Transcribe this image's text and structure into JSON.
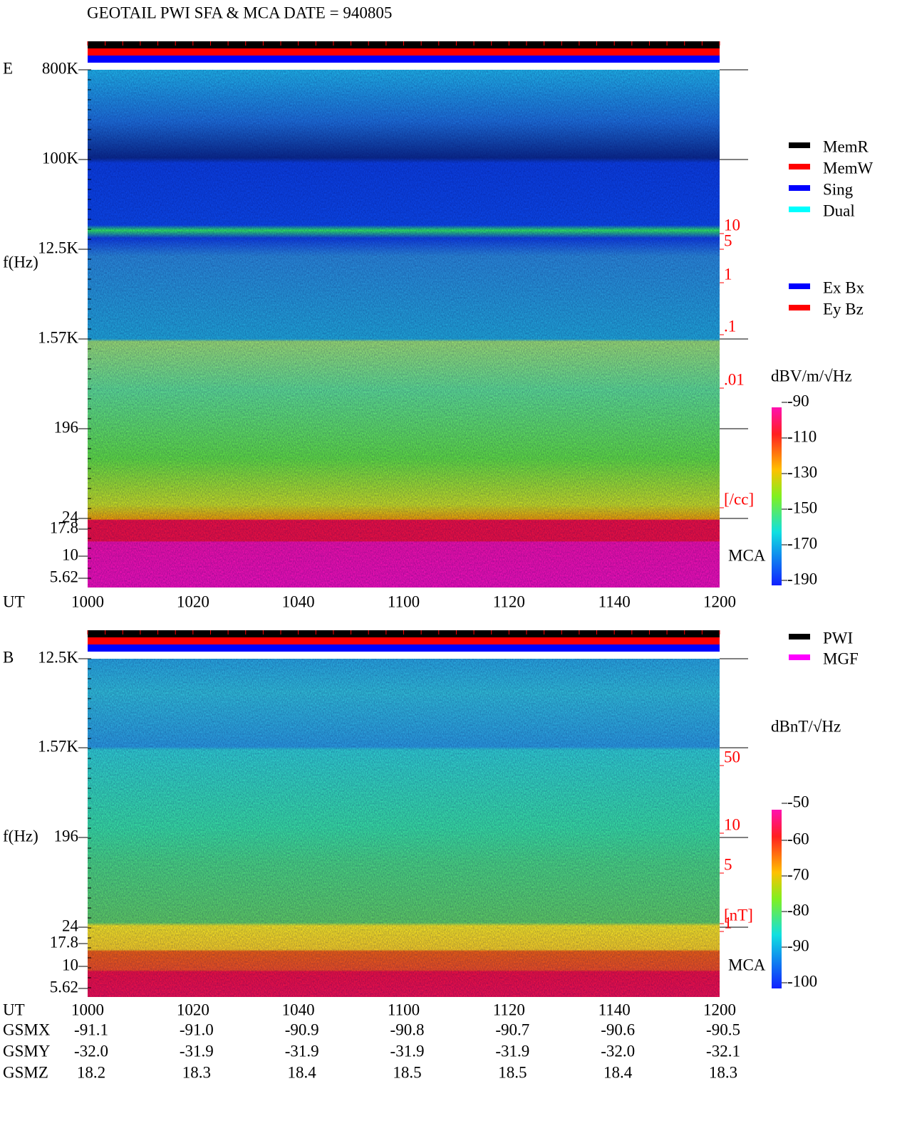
{
  "title": "GEOTAIL  PWI SFA & MCA   DATE = 940805",
  "legend_memory": [
    {
      "name": "MemR",
      "color": "#000000"
    },
    {
      "name": "MemW",
      "color": "#ff0000"
    },
    {
      "name": "Sing",
      "color": "#0000ff"
    },
    {
      "name": "Dual",
      "color": "#00ffff"
    }
  ],
  "panels": [
    {
      "label": "E",
      "y_axis_label": "f(Hz)",
      "x_axis_label": "UT",
      "freq_ticks": [
        "800K",
        "100K",
        "12.5K",
        "1.57K",
        "196",
        "24",
        "17.8",
        "10",
        "5.62"
      ],
      "time_ticks": [
        "1000",
        "1020",
        "1040",
        "1100",
        "1120",
        "1140",
        "1200"
      ],
      "right_labels": [
        "10",
        "5",
        "1",
        ".1",
        ".01",
        "[/cc]"
      ],
      "mca_label": "MCA",
      "legend": [
        {
          "name": "Ex Bx",
          "color": "#0000ff"
        },
        {
          "name": "Ey Bz",
          "color": "#ff0000"
        }
      ],
      "units": "dBV/m/√Hz",
      "colorbar_ticks": [
        -90,
        -110,
        -130,
        -150,
        -170,
        -190
      ]
    },
    {
      "label": "B",
      "y_axis_label": "f(Hz)",
      "x_axis_label": "UT",
      "freq_ticks": [
        "12.5K",
        "1.57K",
        "196",
        "24",
        "17.8",
        "10",
        "5.62"
      ],
      "time_ticks": [
        "1000",
        "1020",
        "1040",
        "1100",
        "1120",
        "1140",
        "1200"
      ],
      "right_labels": [
        "50",
        "10",
        "5",
        "1",
        "[nT]"
      ],
      "mca_label": "MCA",
      "legend": [
        {
          "name": "PWI",
          "color": "#000000"
        },
        {
          "name": "MGF",
          "color": "#ff00ff"
        }
      ],
      "units": "dBnT/√Hz",
      "colorbar_ticks": [
        -50,
        -60,
        -70,
        -80,
        -90,
        -100
      ]
    }
  ],
  "orbit": [
    {
      "label": "GSMX",
      "values": [
        "-91.1",
        "-91.0",
        "-90.9",
        "-90.8",
        "-90.7",
        "-90.6",
        "-90.5"
      ]
    },
    {
      "label": "GSMY",
      "values": [
        "-32.0",
        "-31.9",
        "-31.9",
        "-31.9",
        "-31.9",
        "-32.0",
        "-32.1"
      ]
    },
    {
      "label": "GSMZ",
      "values": [
        "18.2",
        "18.3",
        "18.4",
        "18.5",
        "18.5",
        "18.4",
        "18.3"
      ]
    }
  ]
}
